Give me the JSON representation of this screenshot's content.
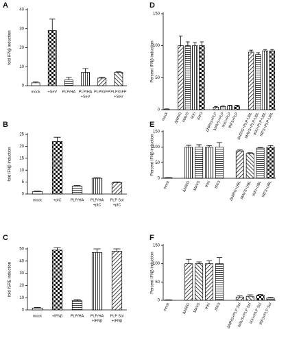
{
  "chart_data": [
    {
      "type": "bar",
      "label": "A",
      "y_label": "fold IFNβ induction",
      "categories": [
        "mock",
        "+SeV",
        "PLP/HA",
        [
          "PLP/HA",
          "+SeV"
        ],
        "PLP/GFP",
        [
          "PLP/GFP",
          "+SeV"
        ]
      ],
      "values": [
        1.5,
        29,
        3,
        7,
        4,
        7
      ],
      "errors": [
        0.5,
        6,
        1.5,
        2,
        0.5,
        0.3
      ],
      "patterns": [
        "white",
        "check",
        "hstripe",
        "vstripe",
        "diag",
        "diagl"
      ],
      "ylim": [
        0,
        40
      ],
      "yticks": [
        0,
        10,
        20,
        30,
        40
      ]
    },
    {
      "type": "bar",
      "label": "B",
      "y_label": "fold IFNβ induction",
      "categories": [
        "mock",
        "+pIC",
        "PLP/HA",
        [
          "PLP/HA",
          "+pIC"
        ],
        [
          "PLP Sol",
          "+pIC"
        ]
      ],
      "values": [
        1,
        22,
        3.3,
        6.6,
        4.8
      ],
      "errors": [
        0.2,
        1.8,
        0.3,
        0.2,
        0.3
      ],
      "patterns": [
        "white",
        "check",
        "hstripe",
        "vstripe",
        "diag"
      ],
      "ylim": [
        0,
        25
      ],
      "yticks": [
        0,
        5,
        10,
        15,
        20,
        25
      ]
    },
    {
      "type": "bar",
      "label": "C",
      "y_label": "fold ISRE induction",
      "categories": [
        "mock",
        "+IFNβ",
        "PLP/HA",
        [
          "PLP/HA",
          "+IFNβ"
        ],
        [
          "PLP Sol",
          "+IFNβ"
        ]
      ],
      "values": [
        1.5,
        49,
        7.5,
        47,
        48
      ],
      "errors": [
        0.5,
        2,
        1,
        3,
        2
      ],
      "patterns": [
        "white",
        "check",
        "hstripe",
        "vstripe",
        "diag"
      ],
      "ylim": [
        0,
        50
      ],
      "yticks": [
        0,
        10,
        20,
        30,
        40,
        50
      ]
    },
    {
      "type": "bar",
      "label": "D",
      "y_label": "Percent IFNβ induction",
      "categories": [
        "mock",
        null,
        "ΔNRIG",
        "MAVS",
        "IKKi",
        "IRF3",
        null,
        "ΔNRIG+PLP",
        "MAVS+PLP",
        "IKKi+PLP",
        "IRF3+PLP",
        null,
        "ΔNRIG+PLP-UBL",
        "MAVS+PLP-UBL",
        "IKKi+PLP-UBL",
        "IRF3+PLP-UBL"
      ],
      "values": [
        1,
        null,
        100,
        100,
        100,
        100,
        null,
        4,
        5,
        6,
        6,
        null,
        90,
        86,
        92,
        92
      ],
      "errors": [
        0.3,
        null,
        15,
        6,
        5,
        6,
        null,
        1,
        1,
        1,
        1,
        null,
        3,
        3,
        2,
        2
      ],
      "patterns": [
        "white",
        null,
        "diag",
        "hstripe",
        "vstripe",
        "check",
        null,
        "diag",
        "hstripe",
        "vstripe",
        "check",
        null,
        "diag",
        "hstripe",
        "vstripe",
        "check"
      ],
      "ylim": [
        0,
        150
      ],
      "yticks": [
        0,
        50,
        100,
        150
      ]
    },
    {
      "type": "bar",
      "label": "E",
      "y_label": "Percent IFNβ induction",
      "categories": [
        "mock",
        null,
        "ΔNRIG",
        "MAVS",
        "IKKi",
        "IRF3",
        null,
        "ΔNRIG+UBL",
        "MAVS+UBL",
        "IKKi+UBL",
        "IRF3+UBL"
      ],
      "values": [
        2,
        null,
        100,
        100,
        100,
        100,
        null,
        88,
        80,
        97,
        100
      ],
      "errors": [
        0.5,
        null,
        6,
        8,
        5,
        15,
        null,
        3,
        2,
        2,
        5
      ],
      "patterns": [
        "white",
        null,
        "vstripe",
        "hstripe",
        "vstripe",
        "hstripe",
        null,
        "diag",
        "diagl",
        "hstripe",
        "check"
      ],
      "ylim": [
        0,
        150
      ],
      "yticks": [
        0,
        50,
        100,
        150
      ]
    },
    {
      "type": "bar",
      "label": "F",
      "y_label": "Percent IFNβ induction",
      "categories": [
        "mock",
        null,
        "ΔNRIG",
        "MAVS",
        "IKKi",
        "IRF3",
        null,
        "ΔNRIG+PLP Sol",
        "MAVS+PLP Sol",
        "IKKi+PLP Sol",
        "IRF3+PLP Sol"
      ],
      "values": [
        1,
        null,
        100,
        100,
        100,
        100,
        null,
        9,
        11,
        14,
        6
      ],
      "errors": [
        0.3,
        null,
        12,
        5,
        8,
        17,
        null,
        3,
        4,
        2,
        2
      ],
      "patterns": [
        "white",
        null,
        "diag",
        "diagl",
        "diag",
        "hstripe",
        null,
        "diag",
        "diagl",
        "check",
        "hstripe"
      ],
      "ylim": [
        0,
        150
      ],
      "yticks": [
        0,
        50,
        100,
        150
      ]
    }
  ]
}
